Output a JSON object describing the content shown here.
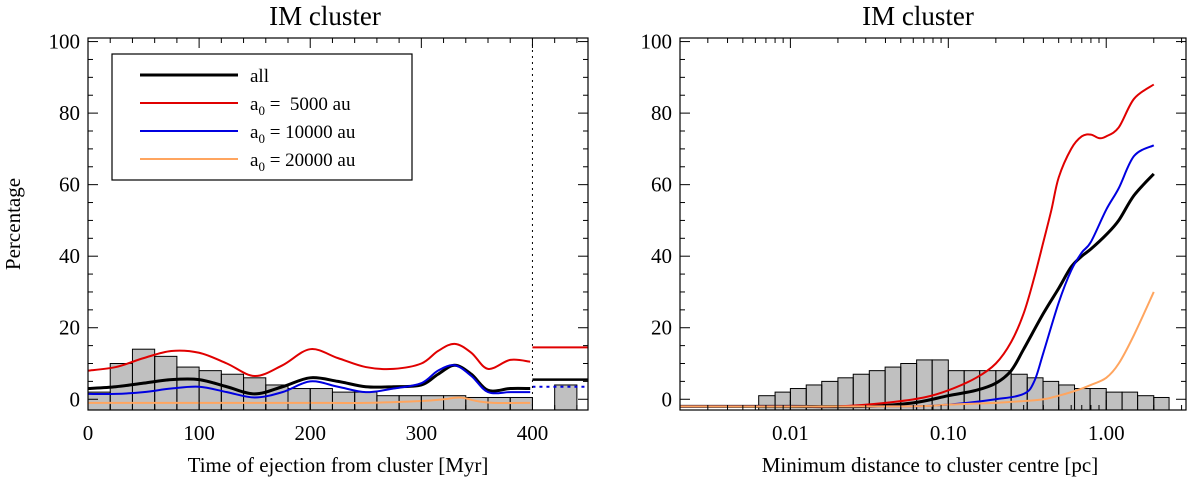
{
  "chart_data": [
    {
      "type": "line",
      "title": "IM cluster",
      "xlabel": "Time of ejection from cluster [Myr]",
      "ylabel": "Percentage",
      "xlim": [
        0,
        450
      ],
      "ylim": [
        -3,
        101
      ],
      "xticks": [
        0,
        100,
        200,
        300,
        400
      ],
      "yticks": [
        0,
        20,
        40,
        60,
        80,
        100
      ],
      "vline_x": 400,
      "legend": {
        "position": "top-left",
        "entries": [
          {
            "label": "all",
            "base": "",
            "sub": "",
            "rest": "",
            "color": "#000000",
            "width": 3
          },
          {
            "label": "a0 =  5000 au",
            "base": "a",
            "sub": "0",
            "rest": " =  5000 au",
            "color": "#e00000",
            "width": 2
          },
          {
            "label": "a0 = 10000 au",
            "base": "a",
            "sub": "0",
            "rest": " = 10000 au",
            "color": "#0000e0",
            "width": 2
          },
          {
            "label": "a0 = 20000 au",
            "base": "a",
            "sub": "0",
            "rest": " = 20000 au",
            "color": "#ffa55f",
            "width": 2
          }
        ]
      },
      "histogram": {
        "fill": "#c0c0c0",
        "edges": [
          0,
          20,
          40,
          60,
          80,
          100,
          120,
          140,
          160,
          180,
          200,
          220,
          240,
          260,
          280,
          300,
          320,
          340,
          360,
          380,
          400,
          420,
          440,
          450
        ],
        "values": [
          2,
          10,
          14,
          12,
          9,
          8,
          7,
          6,
          4,
          3,
          3,
          2,
          2,
          1,
          1,
          1,
          1,
          0.5,
          0.5,
          0.5,
          0,
          4,
          0
        ]
      },
      "series": [
        {
          "name": "all",
          "color": "#000000",
          "width": 3,
          "x": [
            0,
            25,
            50,
            75,
            100,
            125,
            150,
            175,
            200,
            225,
            250,
            275,
            300,
            315,
            330,
            345,
            360,
            380,
            398
          ],
          "y": [
            3,
            3.5,
            4.5,
            5.5,
            5.5,
            3.5,
            1.5,
            3.5,
            6,
            5,
            3.5,
            3.5,
            4,
            7,
            9.5,
            7,
            2.5,
            3,
            3
          ]
        },
        {
          "name": "a0 =  5000 au",
          "color": "#e00000",
          "width": 2,
          "x": [
            0,
            25,
            50,
            75,
            100,
            125,
            150,
            175,
            200,
            225,
            250,
            275,
            300,
            315,
            330,
            345,
            360,
            380,
            398
          ],
          "y": [
            8,
            9,
            11.5,
            13.5,
            13,
            10,
            6.5,
            9.5,
            14,
            11.5,
            9,
            8.5,
            10,
            13.5,
            15.5,
            13,
            8.5,
            11,
            10.5
          ]
        },
        {
          "name": "a0 = 10000 au",
          "color": "#0000e0",
          "width": 2,
          "x": [
            0,
            25,
            50,
            75,
            100,
            125,
            150,
            175,
            200,
            225,
            250,
            275,
            300,
            315,
            330,
            345,
            360,
            380,
            398
          ],
          "y": [
            1.5,
            1.5,
            2,
            3,
            3.5,
            2,
            0.5,
            2,
            5,
            3.5,
            2,
            3,
            4.5,
            8,
            9.5,
            6.5,
            2,
            2,
            2
          ]
        },
        {
          "name": "a0 = 20000 au",
          "color": "#ffa55f",
          "width": 2,
          "x": [
            0,
            50,
            100,
            150,
            200,
            250,
            300,
            320,
            335,
            350,
            365,
            398
          ],
          "y": [
            -1,
            -1,
            -1,
            -1,
            -1,
            -1,
            -0.5,
            0,
            0.5,
            -0.5,
            -1,
            -1
          ]
        }
      ],
      "offscale_levels": [
        {
          "name": "a0 =  5000 au",
          "color": "#e00000",
          "y": 14.5
        },
        {
          "name": "all",
          "color": "#000000",
          "y": 5.5
        },
        {
          "name": "a0 = 10000 au",
          "color": "#0000e0",
          "y": 3.5,
          "dashed": true
        }
      ]
    },
    {
      "type": "line",
      "title": "IM cluster",
      "xlabel": "Minimum distance to cluster centre [pc]",
      "ylabel": "",
      "xscale": "log",
      "xlim": [
        0.002,
        3.2
      ],
      "ylim": [
        -3,
        101
      ],
      "xticks": [
        0.01,
        0.1,
        1.0
      ],
      "xticklabels": [
        "0.01",
        "0.10",
        "1.00"
      ],
      "yticks": [
        0,
        20,
        40,
        60,
        80,
        100
      ],
      "histogram": {
        "fill": "#c0c0c0",
        "edges": [
          0.002,
          0.004,
          0.005,
          0.0063,
          0.008,
          0.01,
          0.0126,
          0.0158,
          0.02,
          0.025,
          0.0316,
          0.0398,
          0.05,
          0.063,
          0.079,
          0.1,
          0.126,
          0.158,
          0.2,
          0.25,
          0.316,
          0.398,
          0.5,
          0.63,
          0.79,
          1.0,
          1.26,
          1.58,
          2.0,
          2.5,
          3.2
        ],
        "values": [
          0,
          0,
          0,
          1,
          2,
          3,
          4,
          5,
          6,
          7,
          8,
          9,
          10,
          11,
          11,
          8,
          8,
          8,
          8,
          7,
          6,
          5,
          4,
          3,
          3,
          2,
          2,
          1,
          0.5,
          0
        ]
      },
      "series": [
        {
          "name": "all",
          "color": "#000000",
          "width": 3,
          "x": [
            0.002,
            0.01,
            0.03,
            0.06,
            0.1,
            0.15,
            0.2,
            0.25,
            0.3,
            0.4,
            0.5,
            0.6,
            0.7,
            0.8,
            1.0,
            1.2,
            1.5,
            2.0
          ],
          "y": [
            -2,
            -2,
            -2,
            -1,
            1,
            2.5,
            4.5,
            8,
            14,
            24,
            31,
            37,
            40,
            42,
            46,
            50,
            57,
            63
          ]
        },
        {
          "name": "a0 =  5000 au",
          "color": "#e00000",
          "width": 2,
          "x": [
            0.002,
            0.01,
            0.02,
            0.04,
            0.07,
            0.1,
            0.15,
            0.2,
            0.25,
            0.3,
            0.35,
            0.4,
            0.45,
            0.5,
            0.6,
            0.7,
            0.8,
            0.9,
            1.0,
            1.2,
            1.5,
            2.0
          ],
          "y": [
            -2,
            -2,
            -2,
            -1,
            0.5,
            2.5,
            6,
            10,
            16,
            24,
            34,
            44,
            53,
            62,
            70,
            73.5,
            74,
            73,
            73.5,
            76,
            84,
            88
          ]
        },
        {
          "name": "a0 = 10000 au",
          "color": "#0000e0",
          "width": 2,
          "x": [
            0.002,
            0.01,
            0.05,
            0.1,
            0.2,
            0.3,
            0.35,
            0.4,
            0.5,
            0.6,
            0.7,
            0.8,
            1.0,
            1.2,
            1.5,
            2.0
          ],
          "y": [
            -2,
            -2,
            -2,
            -1.5,
            0,
            1.5,
            5,
            13,
            27,
            36,
            41,
            44,
            53,
            59,
            68,
            71
          ]
        },
        {
          "name": "a0 = 20000 au",
          "color": "#ffa55f",
          "width": 2,
          "x": [
            0.002,
            0.05,
            0.1,
            0.2,
            0.3,
            0.4,
            0.5,
            0.6,
            0.7,
            0.8,
            1.0,
            1.2,
            1.5,
            2.0
          ],
          "y": [
            -2,
            -2,
            -1.5,
            -1,
            -0.5,
            0,
            1,
            2,
            3,
            4,
            6,
            10,
            18,
            30
          ]
        }
      ]
    }
  ]
}
